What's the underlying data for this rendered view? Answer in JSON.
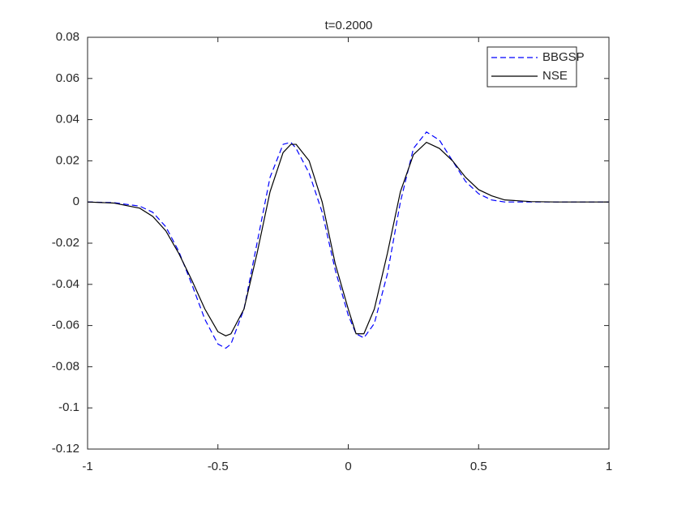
{
  "chart_data": {
    "type": "line",
    "title": "t=0.2000",
    "x": [
      -1,
      -0.9,
      -0.8,
      -0.75,
      -0.7,
      -0.65,
      -0.6,
      -0.55,
      -0.5,
      -0.47,
      -0.45,
      -0.4,
      -0.35,
      -0.3,
      -0.25,
      -0.22,
      -0.2,
      -0.15,
      -0.1,
      -0.05,
      0,
      0.03,
      0.06,
      0.1,
      0.15,
      0.2,
      0.25,
      0.3,
      0.35,
      0.4,
      0.45,
      0.5,
      0.55,
      0.6,
      0.7,
      0.8,
      1
    ],
    "series": [
      {
        "name": "BBGSP",
        "color": "#0000ff",
        "dashed": true,
        "values": [
          0,
          -0.0003,
          -0.002,
          -0.005,
          -0.012,
          -0.024,
          -0.04,
          -0.057,
          -0.069,
          -0.071,
          -0.069,
          -0.052,
          -0.02,
          0.012,
          0.028,
          0.029,
          0.026,
          0.014,
          -0.005,
          -0.033,
          -0.055,
          -0.064,
          -0.066,
          -0.059,
          -0.035,
          0,
          0.026,
          0.034,
          0.03,
          0.02,
          0.01,
          0.004,
          0.001,
          0,
          0,
          0,
          0
        ]
      },
      {
        "name": "NSE",
        "color": "#000000",
        "dashed": false,
        "values": [
          0,
          -0.0005,
          -0.003,
          -0.007,
          -0.014,
          -0.025,
          -0.038,
          -0.052,
          -0.063,
          -0.065,
          -0.064,
          -0.052,
          -0.025,
          0.005,
          0.024,
          0.028,
          0.028,
          0.02,
          0,
          -0.03,
          -0.052,
          -0.064,
          -0.064,
          -0.052,
          -0.025,
          0.005,
          0.023,
          0.029,
          0.026,
          0.02,
          0.012,
          0.006,
          0.003,
          0.001,
          0.0002,
          0,
          0
        ]
      }
    ],
    "xlim": [
      -1,
      1
    ],
    "xticks": [
      -1,
      -0.5,
      0,
      0.5,
      1
    ],
    "ylim": [
      -0.12,
      0.08
    ],
    "yticks": [
      -0.12,
      -0.1,
      -0.08,
      -0.06,
      -0.04,
      -0.02,
      0,
      0.02,
      0.04,
      0.06,
      0.08
    ],
    "legend": "top-right",
    "grid": false
  }
}
